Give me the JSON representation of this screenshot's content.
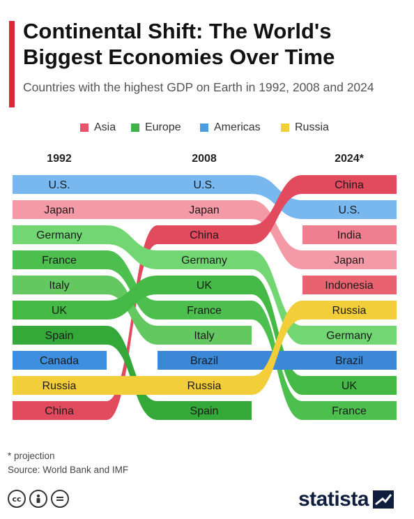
{
  "header": {
    "title": "Continental Shift: The World's Biggest Economies Over Time",
    "subtitle": "Countries with the highest GDP on Earth in 1992, 2008 and 2024"
  },
  "legend": [
    {
      "label": "Asia",
      "color": "#e8536a"
    },
    {
      "label": "Europe",
      "color": "#3fb24a"
    },
    {
      "label": "Americas",
      "color": "#4a9ee0"
    },
    {
      "label": "Russia",
      "color": "#f2d03a"
    }
  ],
  "chart_data": {
    "type": "bump",
    "years": [
      "1992",
      "2008",
      "2024*"
    ],
    "rankings": {
      "1992": [
        "U.S.",
        "Japan",
        "Germany",
        "France",
        "Italy",
        "UK",
        "Spain",
        "Canada",
        "Russia",
        "China"
      ],
      "2008": [
        "U.S.",
        "Japan",
        "China",
        "Germany",
        "UK",
        "France",
        "Italy",
        "Brazil",
        "Russia",
        "Spain"
      ],
      "2024*": [
        "China",
        "U.S.",
        "India",
        "Japan",
        "Indonesia",
        "Russia",
        "Germany",
        "Brazil",
        "UK",
        "France"
      ]
    },
    "region": {
      "U.S.": "Americas",
      "Japan": "Asia",
      "Germany": "Europe",
      "France": "Europe",
      "Italy": "Europe",
      "UK": "Europe",
      "Spain": "Europe",
      "Canada": "Americas",
      "Russia": "Russia",
      "China": "Asia",
      "Brazil": "Americas",
      "India": "Asia",
      "Indonesia": "Asia"
    },
    "colors": {
      "U.S.": "#79b8ef",
      "Japan": "#f49aa6",
      "China": "#e24a5e",
      "India": "#ef7f8e",
      "Indonesia": "#e8636f",
      "Germany": "#72d773",
      "France": "#4cbf4e",
      "Italy": "#62c85f",
      "UK": "#45b946",
      "Spain": "#35a83a",
      "Canada": "#3f8fe0",
      "Brazil": "#3c88d6",
      "Russia": "#f2cf3a"
    }
  },
  "footer": {
    "footnote": "* projection",
    "source": "Source: World Bank and IMF",
    "logo": "statista",
    "license_icons": [
      "cc-icon",
      "by-icon",
      "nd-icon"
    ]
  }
}
